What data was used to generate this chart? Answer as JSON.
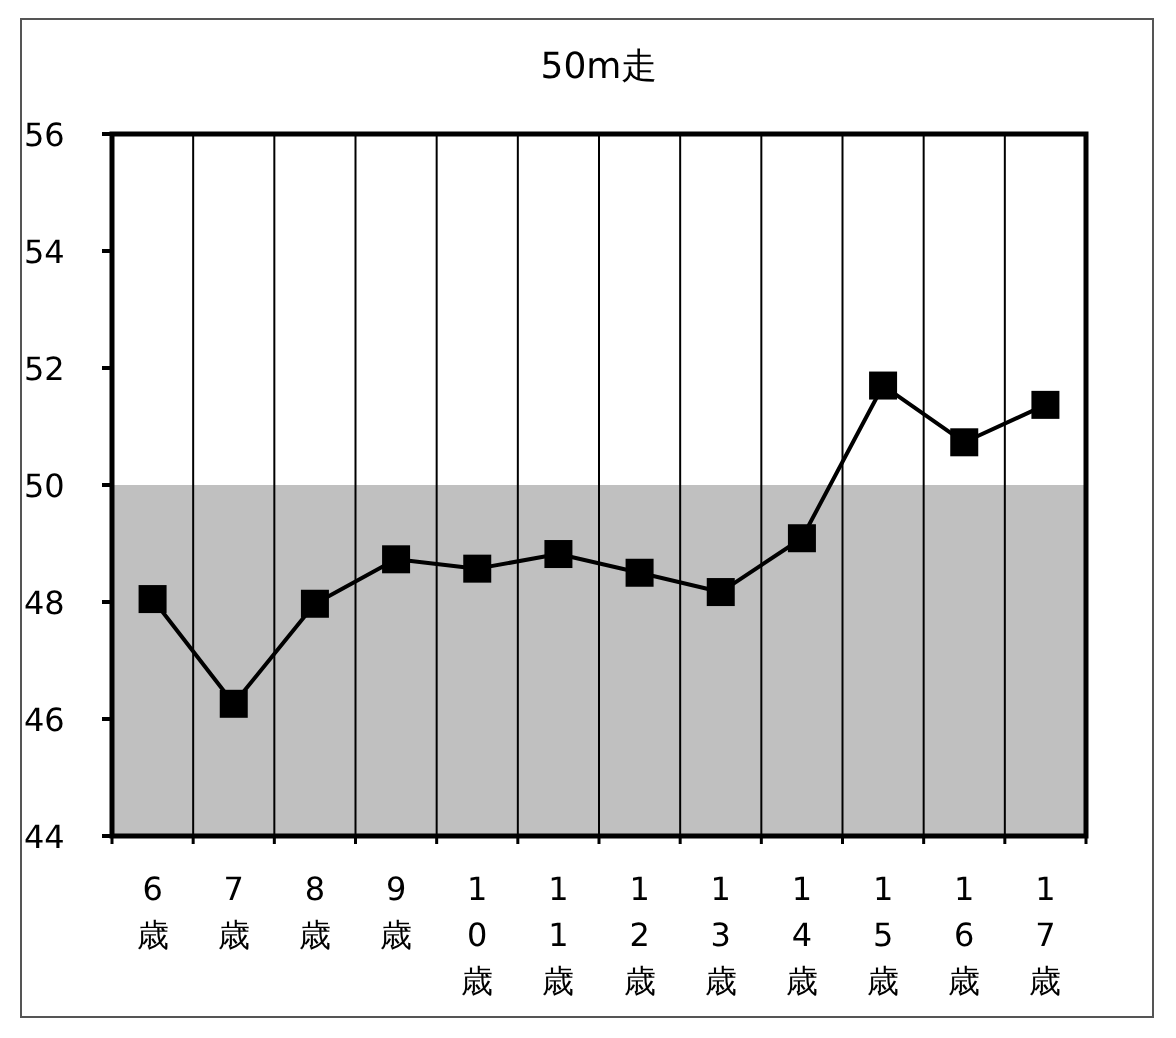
{
  "chart_data": {
    "type": "line",
    "title": "50m走",
    "categories": [
      "6歳",
      "7歳",
      "8歳",
      "9歳",
      "10歳",
      "11歳",
      "12歳",
      "13歳",
      "14歳",
      "15歳",
      "16歳",
      "17歳"
    ],
    "series": [
      {
        "color": "#000000",
        "values": [
          48.05,
          46.26,
          47.97,
          48.73,
          48.57,
          48.82,
          48.5,
          48.17,
          49.09,
          51.7,
          50.73,
          51.37
        ]
      }
    ],
    "ylim": [
      44,
      56
    ],
    "yticks": [
      44,
      46,
      48,
      50,
      52,
      54,
      56
    ],
    "bands": [
      {
        "axis": "y",
        "from": 44,
        "to": 50,
        "color": "#c0c0c0"
      }
    ],
    "grid": "x",
    "marker": "square",
    "line_style": "solid"
  }
}
